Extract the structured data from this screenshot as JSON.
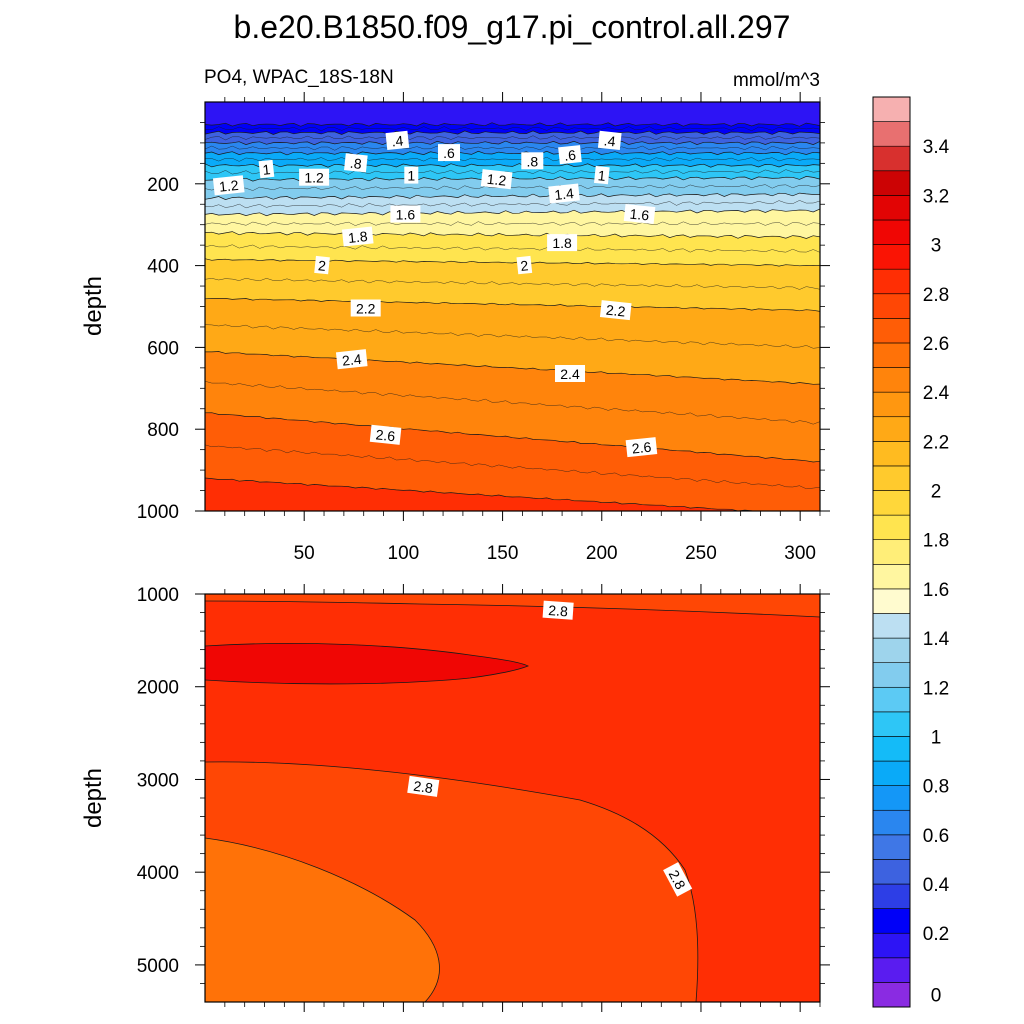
{
  "figure": {
    "title": "b.e20.B1850.f09_g17.pi_control.all.297",
    "subtitle_left": "PO4, WPAC_18S-18N",
    "units": "mmol/m^3"
  },
  "chart_data": [
    {
      "type": "heatmap",
      "subtype": "filled-contour",
      "panel": "upper",
      "ylabel": "depth",
      "xlabel": "",
      "xlim": [
        0,
        310
      ],
      "ylim": [
        1000,
        0
      ],
      "y_reversed": true,
      "x_ticks": [
        50,
        100,
        150,
        200,
        250,
        300
      ],
      "y_ticks": [
        200,
        400,
        600,
        800,
        1000
      ],
      "contours_depth_at_x": {
        "x": [
          0,
          310
        ],
        "levels": [
          {
            "v": 0.2,
            "d": [
              55,
              55
            ]
          },
          {
            "v": 0.4,
            "d": [
              75,
              75
            ]
          },
          {
            "v": 0.6,
            "d": [
              100,
              100
            ]
          },
          {
            "v": 0.8,
            "d": [
              125,
              125
            ]
          },
          {
            "v": 1.0,
            "d": [
              155,
              155
            ]
          },
          {
            "v": 1.2,
            "d": [
              190,
              185
            ]
          },
          {
            "v": 1.4,
            "d": [
              235,
              225
            ]
          },
          {
            "v": 1.6,
            "d": [
              275,
              265
            ]
          },
          {
            "v": 1.8,
            "d": [
              320,
              330
            ]
          },
          {
            "v": 2.0,
            "d": [
              385,
              400
            ]
          },
          {
            "v": 2.2,
            "d": [
              480,
              510
            ]
          },
          {
            "v": 2.4,
            "d": [
              610,
              690
            ]
          },
          {
            "v": 2.6,
            "d": [
              760,
              880
            ]
          },
          {
            "v": 2.8,
            "d": [
              920,
              1010
            ]
          }
        ]
      },
      "contour_labels": [
        {
          "text": ".4",
          "x": 97,
          "y": 95
        },
        {
          "text": ".6",
          "x": 123,
          "y": 125
        },
        {
          "text": ".4",
          "x": 204,
          "y": 95
        },
        {
          "text": ".6",
          "x": 184,
          "y": 130
        },
        {
          "text": ".8",
          "x": 165,
          "y": 145
        },
        {
          "text": ".8",
          "x": 76,
          "y": 150
        },
        {
          "text": "1",
          "x": 31,
          "y": 165
        },
        {
          "text": "1",
          "x": 104,
          "y": 180
        },
        {
          "text": "1",
          "x": 200,
          "y": 180
        },
        {
          "text": "1.2",
          "x": 12,
          "y": 205
        },
        {
          "text": "1.2",
          "x": 55,
          "y": 185
        },
        {
          "text": "1.2",
          "x": 147,
          "y": 190
        },
        {
          "text": "1.4",
          "x": 181,
          "y": 225
        },
        {
          "text": "1.6",
          "x": 101,
          "y": 275
        },
        {
          "text": "1.6",
          "x": 219,
          "y": 275
        },
        {
          "text": "1.8",
          "x": 77,
          "y": 330
        },
        {
          "text": "1.8",
          "x": 180,
          "y": 345
        },
        {
          "text": "2",
          "x": 59,
          "y": 400
        },
        {
          "text": "2",
          "x": 161,
          "y": 400
        },
        {
          "text": "2.2",
          "x": 81,
          "y": 505
        },
        {
          "text": "2.2",
          "x": 207,
          "y": 510
        },
        {
          "text": "2.4",
          "x": 74,
          "y": 630
        },
        {
          "text": "2.4",
          "x": 184,
          "y": 665
        },
        {
          "text": "2.6",
          "x": 91,
          "y": 815
        },
        {
          "text": "2.6",
          "x": 220,
          "y": 845
        }
      ]
    },
    {
      "type": "heatmap",
      "subtype": "filled-contour",
      "panel": "lower",
      "ylabel": "depth",
      "xlabel": "",
      "xlim": [
        0,
        310
      ],
      "ylim": [
        5400,
        1000
      ],
      "y_reversed": true,
      "y_ticks": [
        1000,
        2000,
        3000,
        4000,
        5000
      ],
      "regions": [
        {
          "value": 2.8,
          "description": "shallow band near 1000 m"
        },
        {
          "value": 3.0,
          "description": "tongue 1600-1950 m, x 0-160"
        },
        {
          "value": 2.9,
          "description": "main body"
        },
        {
          "value": 2.7,
          "description": "deep western region below ~2800 m"
        },
        {
          "value": 2.6,
          "description": "deepest western core below ~3600 m"
        }
      ],
      "contour_labels": [
        {
          "text": "2.8",
          "x": 178,
          "y": 1180
        },
        {
          "text": "2.8",
          "x": 110,
          "y": 3080
        },
        {
          "text": "2.8",
          "x": 238,
          "y": 4080
        }
      ]
    }
  ],
  "colorbar": {
    "levels": [
      -0.1,
      0,
      0.1,
      0.2,
      0.3,
      0.4,
      0.5,
      0.6,
      0.7,
      0.8,
      0.9,
      1.0,
      1.1,
      1.2,
      1.3,
      1.4,
      1.5,
      1.6,
      1.7,
      1.8,
      1.9,
      2.0,
      2.1,
      2.2,
      2.3,
      2.4,
      2.5,
      2.6,
      2.7,
      2.8,
      2.9,
      3.0,
      3.1,
      3.2,
      3.3,
      3.4,
      3.5,
      3.6
    ],
    "colors": [
      "#8a2be2",
      "#5a1cf0",
      "#2d14f5",
      "#0000f8",
      "#2d3ee6",
      "#3d62e0",
      "#3f77e6",
      "#2a86ef",
      "#1497f7",
      "#0aaaf8",
      "#14bbf8",
      "#2ec6f6",
      "#5ccaf4",
      "#82ccee",
      "#9ed4ec",
      "#bcdff2",
      "#fffbcf",
      "#fff6a0",
      "#ffee78",
      "#ffe44f",
      "#ffd73a",
      "#ffca2d",
      "#ffbb20",
      "#ffa916",
      "#ff9710",
      "#ff840c",
      "#ff7208",
      "#ff5d06",
      "#ff4705",
      "#ff2e04",
      "#fa1404",
      "#f00604",
      "#e20404",
      "#cc0304",
      "#d8302e",
      "#e87070",
      "#f6b0b0"
    ],
    "label_values": [
      "0",
      "0.2",
      "0.4",
      "0.6",
      "0.8",
      "1",
      "1.2",
      "1.4",
      "1.6",
      "1.8",
      "2",
      "2.2",
      "2.4",
      "2.6",
      "2.8",
      "3",
      "3.2",
      "3.4"
    ]
  }
}
